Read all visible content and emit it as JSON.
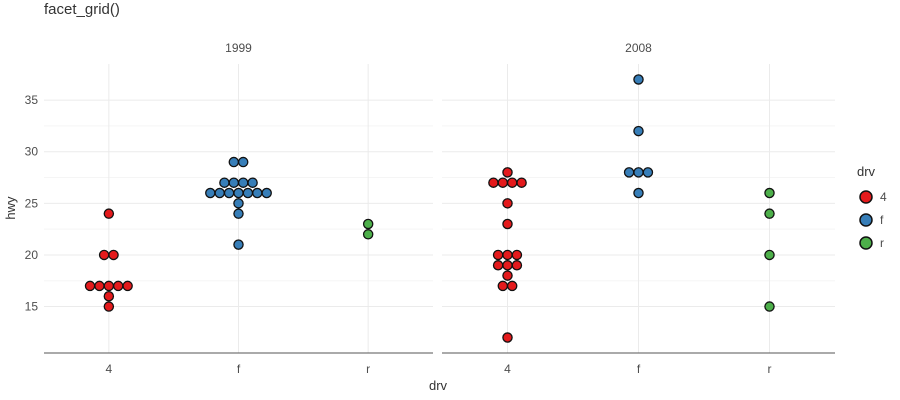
{
  "chart_data": {
    "type": "scatter",
    "title": "facet_grid()",
    "xlabel": "drv",
    "ylabel": "hwy",
    "x_categories": [
      "4",
      "f",
      "r"
    ],
    "y_ticks": [
      15,
      20,
      25,
      30,
      35
    ],
    "ylim": [
      10.5,
      38.5
    ],
    "grid": true,
    "legend": {
      "title": "drv",
      "position": "right",
      "entries": [
        {
          "label": "4",
          "color": "#e41a1c"
        },
        {
          "label": "f",
          "color": "#377eb8"
        },
        {
          "label": "r",
          "color": "#4daf4a"
        }
      ]
    },
    "facets": [
      {
        "label": "1999",
        "points": [
          {
            "drv": "4",
            "hwy": [
              15,
              16,
              17,
              17,
              17,
              17,
              17,
              20,
              20,
              24
            ]
          },
          {
            "drv": "f",
            "hwy": [
              21,
              24,
              25,
              26,
              26,
              26,
              26,
              26,
              26,
              26,
              27,
              27,
              27,
              27,
              29,
              29
            ]
          },
          {
            "drv": "r",
            "hwy": [
              22,
              23
            ]
          }
        ]
      },
      {
        "label": "2008",
        "points": [
          {
            "drv": "4",
            "hwy": [
              12,
              17,
              17,
              18,
              19,
              19,
              19,
              20,
              20,
              20,
              23,
              25,
              27,
              27,
              27,
              27,
              28
            ]
          },
          {
            "drv": "f",
            "hwy": [
              26,
              28,
              28,
              28,
              32,
              37
            ]
          },
          {
            "drv": "r",
            "hwy": [
              15,
              20,
              24,
              26
            ]
          }
        ]
      }
    ]
  }
}
